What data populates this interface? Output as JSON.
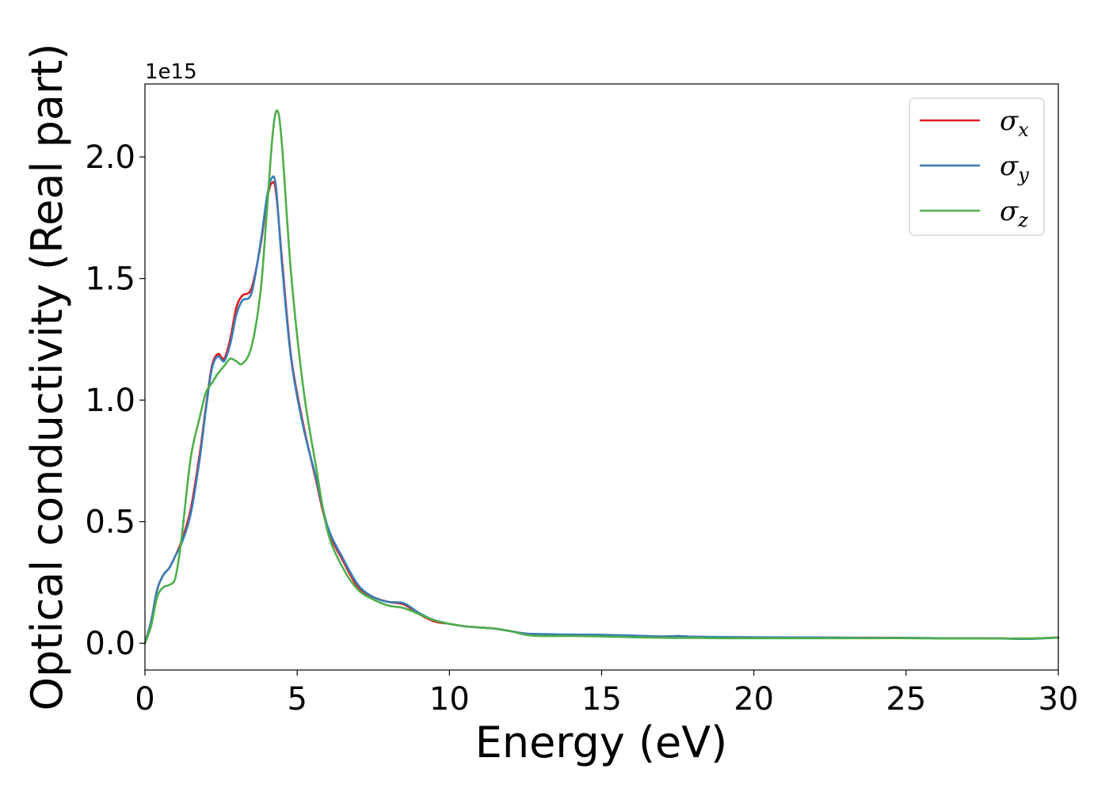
{
  "chart_data": {
    "type": "line",
    "title": "",
    "xlabel": "Energy (eV)",
    "ylabel": "Optical conductivity (Real part)",
    "y_offset_label": "1e15",
    "xlim": [
      0,
      30
    ],
    "ylim": [
      -0.11,
      2.3
    ],
    "xticks": [
      0,
      5,
      10,
      15,
      20,
      25,
      30
    ],
    "xtick_labels": [
      "0",
      "5",
      "10",
      "15",
      "20",
      "25",
      "30"
    ],
    "yticks": [
      0.0,
      0.5,
      1.0,
      1.5,
      2.0
    ],
    "ytick_labels": [
      "0.0",
      "0.5",
      "1.0",
      "1.5",
      "2.0"
    ],
    "grid": false,
    "legend_position": "top-right",
    "series": [
      {
        "name": "σx",
        "legend_symbol": "σ",
        "legend_subscript": "x",
        "color": "#e41a1c",
        "x": [
          0,
          0.2,
          0.4,
          0.6,
          0.8,
          1.0,
          1.2,
          1.5,
          1.8,
          2.0,
          2.2,
          2.4,
          2.6,
          2.8,
          3.0,
          3.2,
          3.5,
          3.8,
          4.0,
          4.15,
          4.3,
          4.5,
          4.8,
          5.2,
          5.6,
          6.0,
          6.5,
          7.0,
          7.5,
          8.0,
          8.5,
          9.0,
          9.5,
          10,
          10.5,
          11,
          11.5,
          12,
          12.5,
          13,
          14,
          15,
          16,
          17,
          17.5,
          18,
          19,
          20,
          21,
          22,
          23,
          24,
          25,
          26,
          27,
          28,
          29,
          30
        ],
        "y": [
          0.0,
          0.09,
          0.22,
          0.28,
          0.31,
          0.36,
          0.42,
          0.55,
          0.78,
          0.97,
          1.14,
          1.19,
          1.17,
          1.25,
          1.38,
          1.43,
          1.46,
          1.64,
          1.82,
          1.89,
          1.86,
          1.58,
          1.18,
          0.9,
          0.68,
          0.47,
          0.34,
          0.23,
          0.19,
          0.17,
          0.16,
          0.12,
          0.09,
          0.08,
          0.07,
          0.065,
          0.06,
          0.05,
          0.04,
          0.037,
          0.035,
          0.033,
          0.031,
          0.028,
          0.03,
          0.027,
          0.025,
          0.024,
          0.024,
          0.024,
          0.023,
          0.023,
          0.022,
          0.021,
          0.021,
          0.02,
          0.019,
          0.024
        ]
      },
      {
        "name": "σy",
        "legend_symbol": "σ",
        "legend_subscript": "y",
        "color": "#377eb8",
        "x": [
          0,
          0.2,
          0.4,
          0.6,
          0.8,
          1.0,
          1.2,
          1.5,
          1.8,
          2.0,
          2.2,
          2.4,
          2.6,
          2.8,
          3.0,
          3.2,
          3.5,
          3.8,
          4.0,
          4.15,
          4.3,
          4.5,
          4.8,
          5.2,
          5.6,
          6.0,
          6.5,
          7.0,
          7.5,
          8.0,
          8.5,
          9.0,
          9.5,
          10,
          10.5,
          11,
          11.5,
          12,
          12.5,
          13,
          14,
          15,
          16,
          17,
          17.5,
          18,
          19,
          20,
          21,
          22,
          23,
          24,
          25,
          26,
          27,
          28,
          29,
          30
        ],
        "y": [
          0.0,
          0.09,
          0.22,
          0.28,
          0.31,
          0.36,
          0.41,
          0.53,
          0.76,
          0.96,
          1.13,
          1.18,
          1.16,
          1.23,
          1.35,
          1.41,
          1.44,
          1.65,
          1.83,
          1.91,
          1.88,
          1.56,
          1.17,
          0.89,
          0.69,
          0.48,
          0.35,
          0.24,
          0.19,
          0.17,
          0.165,
          0.125,
          0.095,
          0.08,
          0.07,
          0.065,
          0.06,
          0.05,
          0.04,
          0.038,
          0.036,
          0.035,
          0.032,
          0.028,
          0.03,
          0.027,
          0.026,
          0.025,
          0.024,
          0.024,
          0.023,
          0.022,
          0.022,
          0.021,
          0.02,
          0.02,
          0.018,
          0.023
        ]
      },
      {
        "name": "σz",
        "legend_symbol": "σ",
        "legend_subscript": "z",
        "color": "#4daf4a",
        "x": [
          0,
          0.2,
          0.4,
          0.6,
          0.8,
          1.0,
          1.2,
          1.5,
          1.8,
          2.0,
          2.2,
          2.4,
          2.6,
          2.8,
          3.0,
          3.2,
          3.5,
          3.8,
          4.0,
          4.2,
          4.35,
          4.5,
          4.8,
          5.2,
          5.6,
          6.0,
          6.5,
          7.0,
          7.5,
          8.0,
          8.5,
          9.0,
          9.5,
          10,
          10.5,
          11,
          11.5,
          12,
          12.5,
          13,
          14,
          15,
          16,
          17,
          17.5,
          18,
          19,
          20,
          21,
          22,
          23,
          24,
          25,
          26,
          27,
          28,
          29,
          30
        ],
        "y": [
          0.0,
          0.07,
          0.19,
          0.23,
          0.24,
          0.27,
          0.43,
          0.76,
          0.93,
          1.03,
          1.07,
          1.11,
          1.14,
          1.17,
          1.16,
          1.15,
          1.22,
          1.45,
          1.77,
          2.1,
          2.19,
          2.05,
          1.52,
          1.05,
          0.74,
          0.46,
          0.31,
          0.22,
          0.18,
          0.155,
          0.145,
          0.12,
          0.095,
          0.08,
          0.07,
          0.065,
          0.06,
          0.05,
          0.035,
          0.03,
          0.03,
          0.028,
          0.025,
          0.023,
          0.022,
          0.022,
          0.021,
          0.021,
          0.021,
          0.021,
          0.021,
          0.021,
          0.021,
          0.02,
          0.02,
          0.02,
          0.02,
          0.023
        ]
      }
    ]
  }
}
